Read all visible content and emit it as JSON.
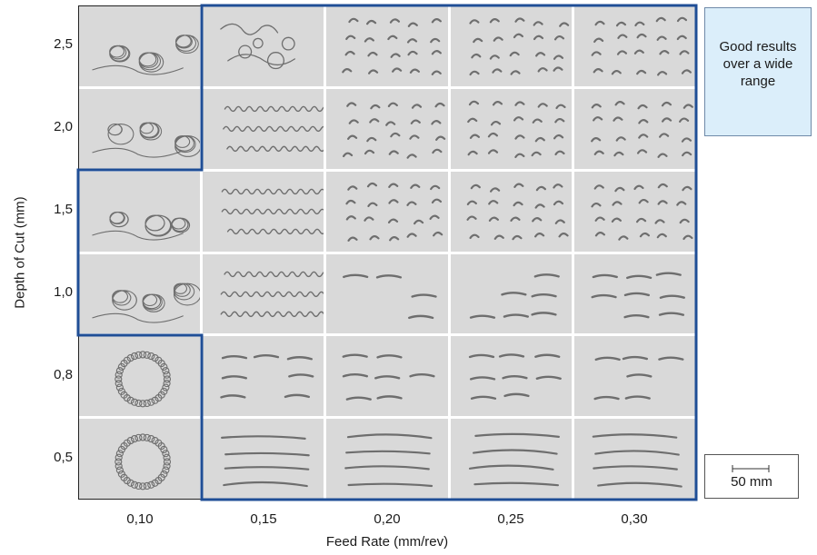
{
  "y_axis": {
    "title": "Depth of Cut (mm)",
    "ticks": [
      "2,5",
      "2,0",
      "1,5",
      "1,0",
      "0,8",
      "0,5"
    ]
  },
  "x_axis": {
    "title": "Feed Rate (mm/rev)",
    "ticks": [
      "0,10",
      "0,15",
      "0,20",
      "0,25",
      "0,30"
    ]
  },
  "legend": {
    "good_line1": "Good results",
    "good_line2": "over a wide",
    "good_line3": "range",
    "scale": "50 mm"
  },
  "colors": {
    "good_region_border": "#1f4e96",
    "good_box_fill": "#dbeefa",
    "photo_background": "#d9d9d9",
    "chip": "#6e6e6e"
  },
  "chip_shapes": [
    [
      "tangle",
      "snarl",
      "comma",
      "comma",
      "comma"
    ],
    [
      "tangle",
      "coil",
      "comma",
      "comma",
      "comma"
    ],
    [
      "tangle",
      "coil",
      "comma",
      "comma",
      "comma"
    ],
    [
      "tangle",
      "coil",
      "short-ribbon",
      "short-ribbon",
      "short-ribbon"
    ],
    [
      "ring",
      "short-ribbon",
      "short-ribbon",
      "short-ribbon",
      "short-ribbon"
    ],
    [
      "ring",
      "long-ribbon",
      "long-ribbon",
      "long-ribbon",
      "long-ribbon"
    ]
  ]
}
